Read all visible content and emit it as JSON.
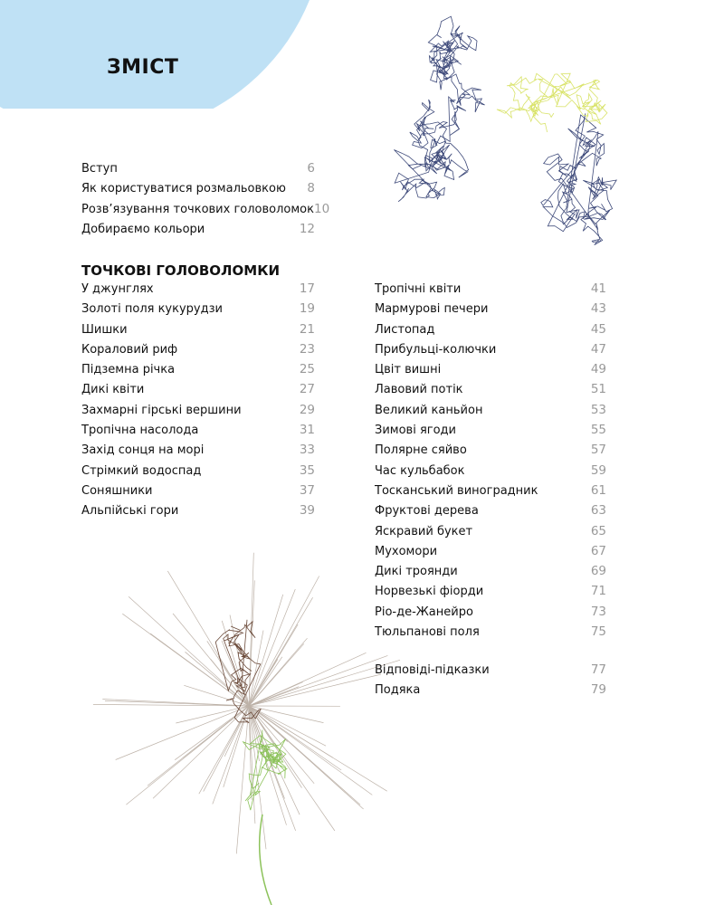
{
  "title": "ЗМІСТ",
  "colors": {
    "circle": "#bfe1f5",
    "page_numbers": "#999999",
    "illustration_blue": "#3e4a7a",
    "illustration_yellow": "#d9e36a",
    "illustration_green": "#8cc25a",
    "illustration_brown": "#6b4a3a"
  },
  "intro": [
    {
      "label": "Вступ",
      "page": "6"
    },
    {
      "label": "Як користуватися розмальовкою",
      "page": "8"
    },
    {
      "label": "Розв’язування точкових головоломок",
      "page": "10"
    },
    {
      "label": "Добираємо кольори",
      "page": "12"
    }
  ],
  "section_title": "ТОЧКОВІ ГОЛОВОЛОМКИ",
  "left": [
    {
      "label": "У джунглях",
      "page": "17"
    },
    {
      "label": "Золоті поля кукурудзи",
      "page": "19"
    },
    {
      "label": "Шишки",
      "page": "21"
    },
    {
      "label": "Кораловий риф",
      "page": "23"
    },
    {
      "label": "Підземна річка",
      "page": "25"
    },
    {
      "label": "Дикі квіти",
      "page": "27"
    },
    {
      "label": "Захмарні гірські вершини",
      "page": "29"
    },
    {
      "label": "Тропічна насолода",
      "page": "31"
    },
    {
      "label": "Захід сонця на морі",
      "page": "33"
    },
    {
      "label": "Стрімкий водоспад",
      "page": "35"
    },
    {
      "label": "Соняшники",
      "page": "37"
    },
    {
      "label": "Альпійські гори",
      "page": "39"
    }
  ],
  "right": [
    {
      "label": "Тропічні квіти",
      "page": "41"
    },
    {
      "label": "Мармурові печери",
      "page": "43"
    },
    {
      "label": "Листопад",
      "page": "45"
    },
    {
      "label": "Прибульці-колючки",
      "page": "47"
    },
    {
      "label": "Цвіт вишні",
      "page": "49"
    },
    {
      "label": "Лавовий потік",
      "page": "51"
    },
    {
      "label": "Великий каньйон",
      "page": "53"
    },
    {
      "label": "Зимові ягоди",
      "page": "55"
    },
    {
      "label": "Полярне сяйво",
      "page": "57"
    },
    {
      "label": "Час кульбабок",
      "page": "59"
    },
    {
      "label": "Тосканський виноградник",
      "page": "61"
    },
    {
      "label": "Фруктові дерева",
      "page": "63"
    },
    {
      "label": "Яскравий  букет",
      "page": "65"
    },
    {
      "label": "Мухомори",
      "page": "67"
    },
    {
      "label": "Дикі троянди",
      "page": "69"
    },
    {
      "label": "Норвезькі фіорди",
      "page": "71"
    },
    {
      "label": "Ріо-де-Жанейро",
      "page": "73"
    },
    {
      "label": "Тюльпанові поля",
      "page": "75"
    }
  ],
  "appendix": [
    {
      "label": "Відповіді-підказки",
      "page": "77"
    },
    {
      "label": "Подяка",
      "page": "79"
    }
  ]
}
